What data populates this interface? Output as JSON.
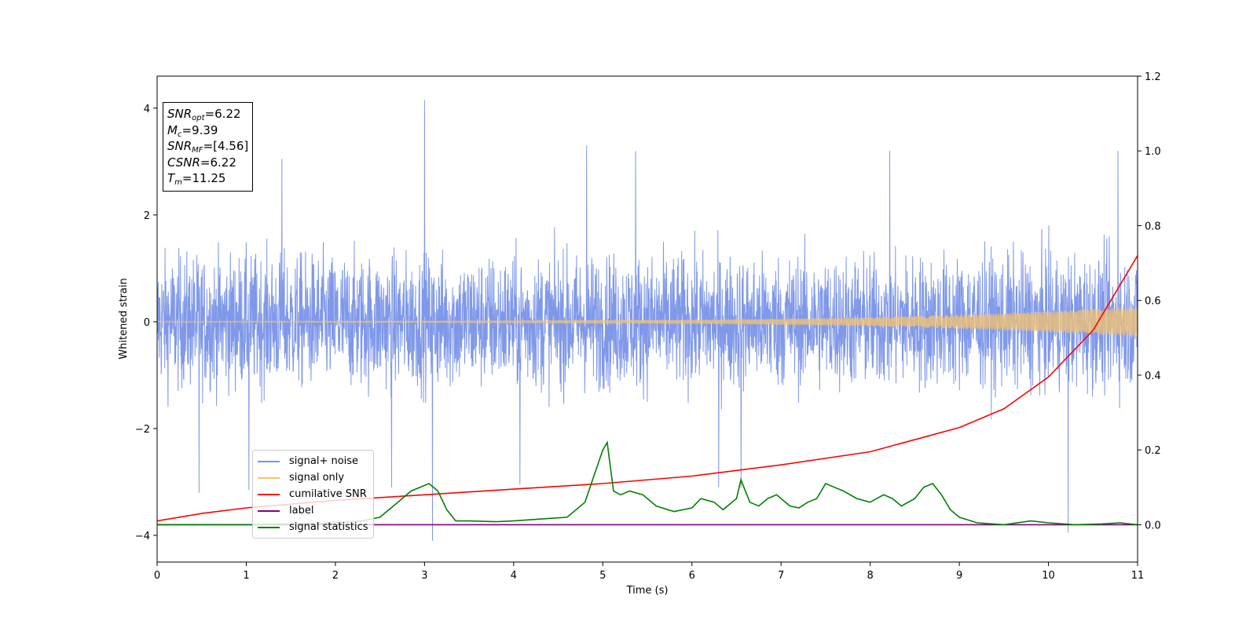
{
  "chart_data": {
    "type": "line",
    "xlabel": "Time (s)",
    "ylabel": "Whitened strain",
    "xlim": [
      0,
      11
    ],
    "ylim": [
      -4.5,
      4.6
    ],
    "y2lim": [
      -0.1,
      1.2
    ],
    "xticks": [
      "0",
      "1",
      "2",
      "3",
      "4",
      "5",
      "6",
      "7",
      "8",
      "9",
      "10",
      "11"
    ],
    "yticks": [
      "−4",
      "−2",
      "0",
      "2",
      "4"
    ],
    "y2ticks": [
      "0.0",
      "0.2",
      "0.4",
      "0.6",
      "0.8",
      "1.0",
      "1.2"
    ],
    "grid": false,
    "legend_position": "lower-left",
    "stats": {
      "snr_opt": {
        "sym": "SNR",
        "sub": "opt",
        "value": "=6.22"
      },
      "mc": {
        "sym": "M",
        "sub": "c",
        "value": "=9.39"
      },
      "snr_mf": {
        "sym": "SNR",
        "sub": "MF",
        "value": "=[4.56]"
      },
      "csnr": {
        "sym": "CSNR",
        "sub": "",
        "value": "=6.22"
      },
      "tm": {
        "sym": "T",
        "sub": "m",
        "value": "=11.25"
      }
    },
    "series": [
      {
        "name": "signal+ noise",
        "color": "#7892e8",
        "axis": "left",
        "description_values": "white noise, amplitude roughly ±2 with spikes to ±3",
        "envelope_typical": 1.8,
        "spikes": [
          [
            0.47,
            -3.2
          ],
          [
            1.03,
            -3.15
          ],
          [
            1.4,
            3.05
          ],
          [
            2.63,
            -3.1
          ],
          [
            3.0,
            4.15
          ],
          [
            3.09,
            -4.1
          ],
          [
            4.07,
            -3.05
          ],
          [
            4.82,
            3.3
          ],
          [
            5.37,
            3.2
          ],
          [
            6.3,
            -3.1
          ],
          [
            6.55,
            -3.1
          ],
          [
            8.22,
            3.2
          ],
          [
            10.22,
            -3.95
          ],
          [
            10.78,
            3.2
          ]
        ]
      },
      {
        "name": "signal only",
        "color": "#f5c36e",
        "axis": "left",
        "chirp_amplitude_end": 0.27
      },
      {
        "name": "cumilative SNR",
        "color": "#ff0000",
        "axis": "right",
        "x": [
          0,
          0.5,
          1,
          2,
          3,
          4,
          5,
          6,
          7,
          8,
          9,
          9.5,
          10,
          10.5,
          11
        ],
        "y": [
          0.01,
          0.03,
          0.045,
          0.065,
          0.08,
          0.095,
          0.11,
          0.13,
          0.16,
          0.195,
          0.26,
          0.31,
          0.395,
          0.52,
          0.72
        ]
      },
      {
        "name": "label",
        "color": "#800080",
        "axis": "right",
        "x": [
          0,
          11
        ],
        "y": [
          0.0,
          0.0
        ]
      },
      {
        "name": "signal statistics",
        "color": "#008000",
        "axis": "right",
        "x": [
          0,
          0.5,
          1,
          1.5,
          2,
          2.3,
          2.5,
          2.65,
          2.75,
          2.85,
          2.95,
          3.05,
          3.15,
          3.25,
          3.35,
          3.5,
          3.8,
          4.0,
          4.3,
          4.6,
          4.8,
          4.9,
          5.0,
          5.05,
          5.12,
          5.2,
          5.3,
          5.45,
          5.6,
          5.8,
          6.0,
          6.1,
          6.25,
          6.35,
          6.5,
          6.55,
          6.65,
          6.75,
          6.85,
          6.95,
          7.1,
          7.2,
          7.3,
          7.4,
          7.5,
          7.6,
          7.7,
          7.85,
          8.0,
          8.15,
          8.25,
          8.35,
          8.5,
          8.6,
          8.7,
          8.8,
          8.9,
          9.0,
          9.2,
          9.5,
          9.8,
          10.0,
          10.3,
          10.6,
          10.8,
          11.0
        ],
        "y": [
          0.0,
          0.0,
          0.0,
          0.002,
          0.005,
          0.01,
          0.02,
          0.05,
          0.07,
          0.09,
          0.1,
          0.11,
          0.09,
          0.04,
          0.01,
          0.01,
          0.008,
          0.01,
          0.015,
          0.02,
          0.06,
          0.13,
          0.2,
          0.22,
          0.09,
          0.08,
          0.09,
          0.08,
          0.05,
          0.035,
          0.045,
          0.07,
          0.06,
          0.04,
          0.07,
          0.12,
          0.06,
          0.05,
          0.07,
          0.08,
          0.05,
          0.045,
          0.06,
          0.07,
          0.11,
          0.1,
          0.09,
          0.07,
          0.06,
          0.08,
          0.07,
          0.05,
          0.07,
          0.1,
          0.11,
          0.08,
          0.04,
          0.02,
          0.005,
          0.0,
          0.01,
          0.005,
          0.0,
          0.002,
          0.005,
          0.0
        ]
      }
    ]
  }
}
